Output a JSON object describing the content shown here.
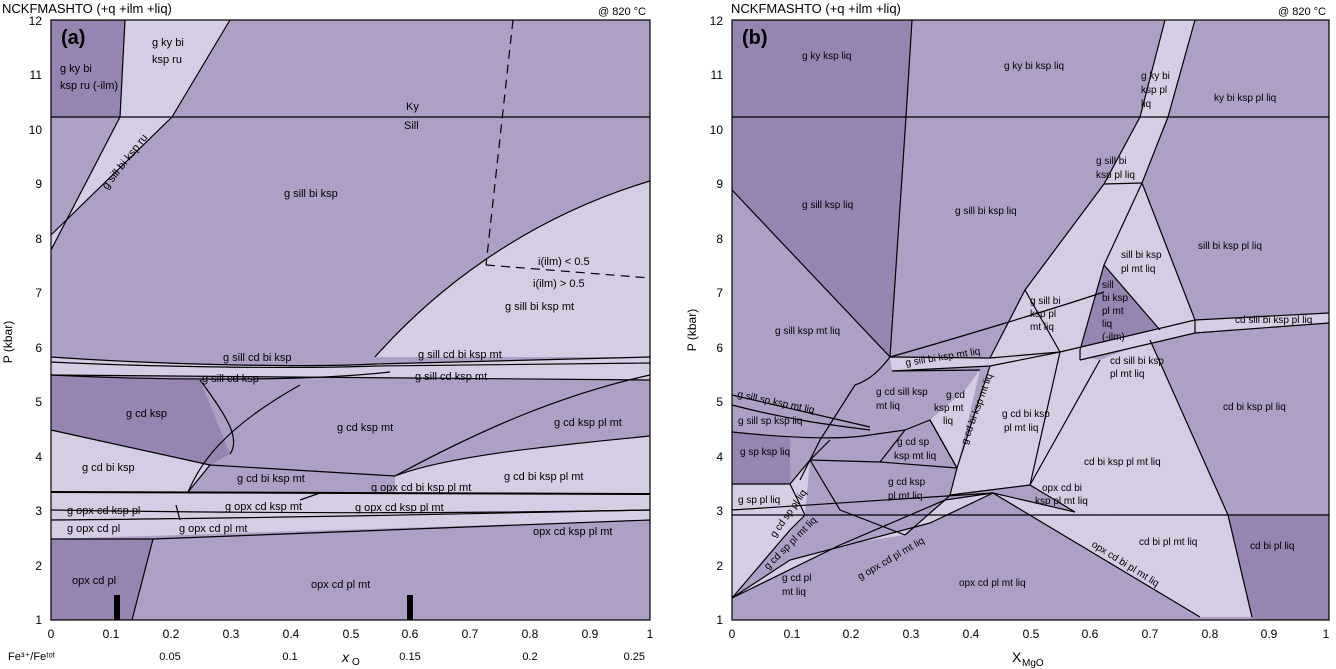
{
  "colors": {
    "light": "#d5cde3",
    "medium": "#ae9fc4",
    "dark": "#9684b1"
  },
  "panel_a": {
    "header": "NCKFMASHTO (+q  +ilm +liq)",
    "temperature": "@ 820 °C",
    "tag": "(a)",
    "y_axis_label": "P (kbar)",
    "y_ticks": [
      "1",
      "2",
      "3",
      "4",
      "5",
      "6",
      "7",
      "8",
      "9",
      "10",
      "11",
      "12"
    ],
    "x_ticks": [
      "0",
      "0.1",
      "0.2",
      "0.3",
      "0.4",
      "0.5",
      "0.6",
      "0.7",
      "0.8",
      "0.9",
      "1"
    ],
    "x2_label": "Fe³⁺/Feᵗᵒᵗ",
    "x2_ticks": [
      "0.05",
      "0.1",
      "0.15",
      "0.2",
      "0.25"
    ],
    "x_label": "x",
    "x_label_sub": "O",
    "fields": {
      "f1": "g ky bi",
      "f2": "ksp ru",
      "f3": "g ky bi",
      "f4": "ksp ru (-ilm)",
      "f5": "Ky",
      "f6": "Sill",
      "f7": "g sill bi ksp ru",
      "f8": "g sill bi ksp",
      "f9": "i(ilm) < 0.5",
      "f10": "i(ilm) > 0.5",
      "f11": "g sill bi ksp mt",
      "f12": "g sill cd bi ksp",
      "f13": "g sill cd bi ksp mt",
      "f14": "g sill cd ksp",
      "f15": "g sill cd ksp mt",
      "f16": "g cd ksp",
      "f17": "g cd ksp mt",
      "f18": "g cd ksp pl mt",
      "f19": "g cd bi ksp",
      "f20": "g cd bi ksp mt",
      "f21": "g cd bi ksp pl mt",
      "f22": "g opx cd bi ksp pl mt",
      "f23": "g opx cd ksp pl",
      "f24": "g opx cd ksp mt",
      "f25": "g opx cd ksp pl mt",
      "f26": "g opx cd pl",
      "f27": "g opx cd pl mt",
      "f28": "opx cd ksp pl mt",
      "f29": "opx cd pl",
      "f30": "opx cd pl mt"
    }
  },
  "panel_b": {
    "header": "NCKFMASHTO (+q  +ilm +liq)",
    "temperature": "@ 820 °C",
    "tag": "(b)",
    "y_axis_label": "P (kbar)",
    "y_ticks": [
      "1",
      "2",
      "3",
      "4",
      "5",
      "6",
      "7",
      "8",
      "9",
      "10",
      "11",
      "12"
    ],
    "x_ticks": [
      "0",
      "0.1",
      "0.2",
      "0.3",
      "0.4",
      "0.5",
      "0.6",
      "0.7",
      "0.8",
      "0.9",
      "1"
    ],
    "x_label": "X",
    "x_label_sub": "MgO",
    "fields": {
      "f1": "g ky ksp liq",
      "f2": "g ky bi ksp liq",
      "f3": "g ky bi",
      "f4": "ksp pl",
      "f5": "liq",
      "f6": "ky bi ksp pl liq",
      "f7": "g sill bi",
      "f8": "ksp pl liq",
      "f9": "g sill ksp liq",
      "f10": "g sill bi ksp liq",
      "f11": "sill bi ksp",
      "f12": "pl mt liq",
      "f13": "sill bi ksp pl liq",
      "f14": "sill",
      "f15": "bi ksp",
      "f16": "pl mt",
      "f17": "liq",
      "f18": "(-ilm)",
      "f19": "g sill bi",
      "f20": "ksp pl",
      "f21": "mt liq",
      "f22": "g sill ksp mt liq",
      "f23": "g sill bi ksp mt liq",
      "f24": "cd sill bi ksp pl liq",
      "f25": "cd sill bi ksp",
      "f26": "pl mt liq",
      "f27": "g sill sp ksp mt liq",
      "f28": "g sill sp ksp liq",
      "f29": "g cd sill ksp",
      "f30": "mt liq",
      "f31": "g cd",
      "f32": "ksp mt",
      "f33": "liq",
      "f34": "g cd bi ksp mt liq",
      "f35": "g cd bi ksp",
      "f36": "pl mt liq",
      "f37": "cd bi ksp pl liq",
      "f38": "g sp ksp liq",
      "f39": "g cd sp",
      "f40": "ksp mt liq",
      "f41": "cd bi ksp pl mt liq",
      "f42": "g sp pl liq",
      "f43": "g cd ksp",
      "f44": "pl mt liq",
      "f45": "opx cd bi",
      "f46": "ksp pl mt liq",
      "f47": "g cd sp pl liq",
      "f48": "g cd sp pl mt liq",
      "f49": "cd bi pl mt liq",
      "f50": "cd bi pl liq",
      "f51": "g cd pl",
      "f52": "mt liq",
      "f53": "g opx cd pl mt liq",
      "f54": "opx cd pl mt liq",
      "f55": "opx cd bi pl mt liq"
    }
  }
}
